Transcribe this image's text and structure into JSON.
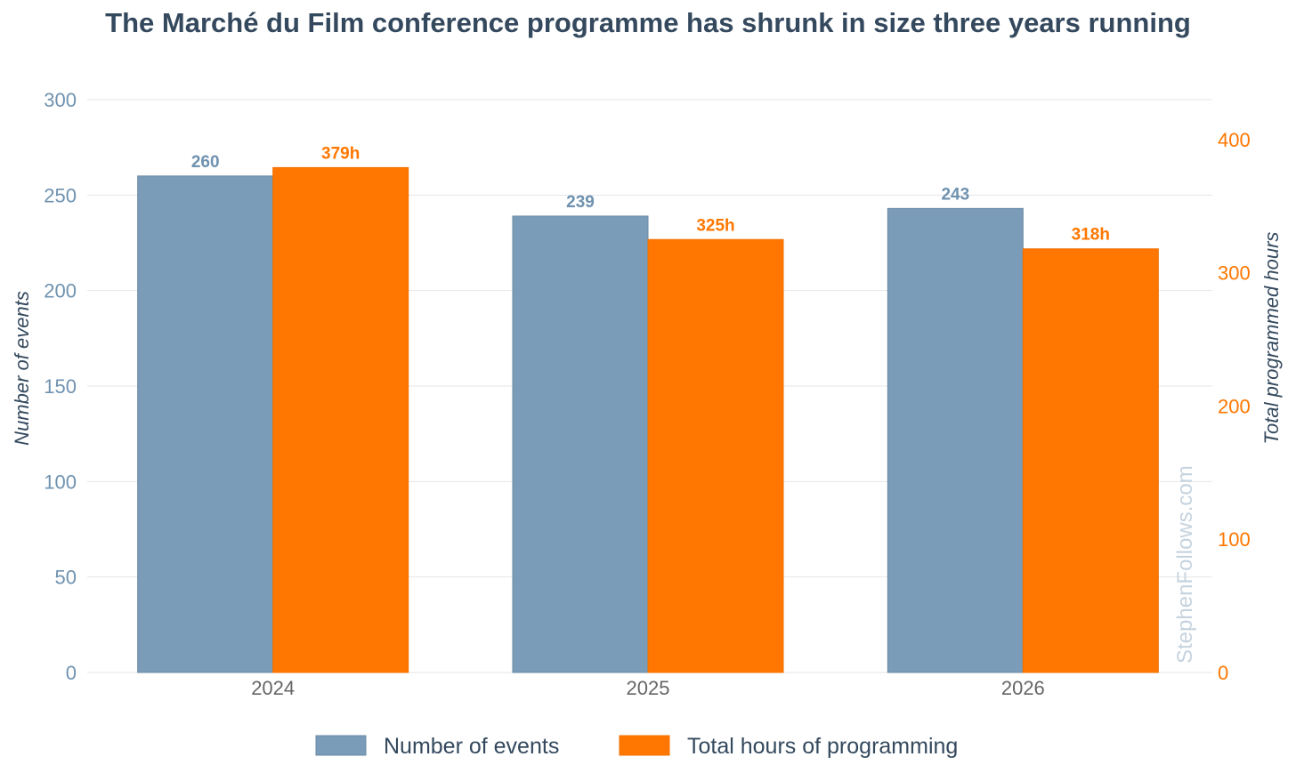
{
  "chart_data": {
    "type": "bar",
    "title": "The Marché du Film conference programme has shrunk in size three years running",
    "categories": [
      "2024",
      "2025",
      "2026"
    ],
    "series": [
      {
        "name": "Number of events",
        "axis": "left",
        "values": [
          260,
          239,
          243
        ],
        "labels": [
          "260",
          "239",
          "243"
        ],
        "color": "#7a9cb8",
        "label_color": "#6f92b0"
      },
      {
        "name": "Total hours of programming",
        "axis": "right",
        "values": [
          379,
          325,
          318
        ],
        "labels": [
          "379h",
          "325h",
          "318h"
        ],
        "color": "#ff7700",
        "label_color": "#ff7700"
      }
    ],
    "y_left": {
      "label": "Number of events",
      "ylim": [
        0,
        300
      ],
      "ticks": [
        0,
        50,
        100,
        150,
        200,
        250,
        300
      ],
      "color": "#6f92b0"
    },
    "y_right": {
      "label": "Total programmed hours",
      "ylim": [
        0,
        430
      ],
      "ticks": [
        0,
        100,
        200,
        300,
        400
      ],
      "color": "#ff7700"
    },
    "grid": true,
    "legend_position": "bottom-center",
    "watermark": "StephenFollows.com"
  }
}
